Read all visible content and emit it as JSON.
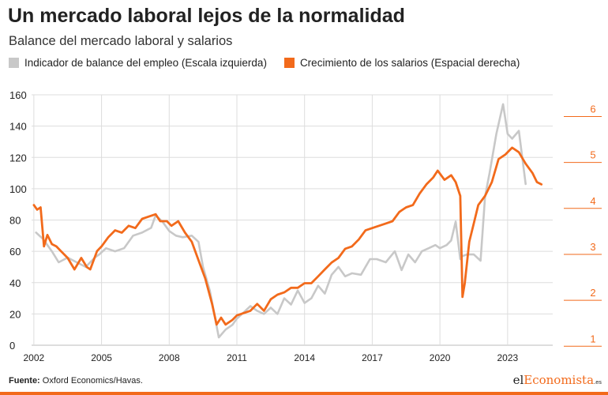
{
  "header": {
    "title": "Un mercado laboral lejos de la normalidad",
    "subtitle": "Balance del mercado laboral y salarios"
  },
  "legend": {
    "gray_label": "Indicador de balance del empleo (Escala izquierda)",
    "orange_label": "Crecimiento de los salarios (Espacial derecha)"
  },
  "footer": {
    "source_prefix": "Fuente:",
    "source_text": " Oxford Economics/Havas.",
    "logo_part1": "el",
    "logo_part2": "Economista",
    "logo_part3": ".es"
  },
  "colors": {
    "gray_series": "#c8c8c8",
    "orange_series": "#f26a1b",
    "grid": "#dddddd",
    "axis_text": "#222222"
  },
  "chart_data": {
    "type": "line",
    "title": "Un mercado laboral lejos de la normalidad",
    "subtitle": "Balance del mercado laboral y salarios",
    "x_ticks": [
      2002,
      2005,
      2008,
      2011,
      2014,
      2017,
      2020,
      2023
    ],
    "xlim": [
      2001.9,
      2025.0
    ],
    "y_left": {
      "lim": [
        0,
        160
      ],
      "ticks": [
        0,
        20,
        40,
        60,
        80,
        100,
        120,
        140,
        160
      ]
    },
    "y_right": {
      "lim": [
        0.85,
        6.3
      ],
      "ticks": [
        1,
        2,
        3,
        4,
        5,
        6
      ]
    },
    "grid": true,
    "legend_position": "top",
    "series": [
      {
        "name": "Indicador de balance del empleo (Escala izquierda)",
        "axis": "left",
        "color": "#c8c8c8",
        "x": [
          2002.1,
          2002.4,
          2002.8,
          2003.1,
          2003.5,
          2003.9,
          2004.3,
          2004.7,
          2004.9,
          2005.2,
          2005.6,
          2006.0,
          2006.4,
          2006.8,
          2007.2,
          2007.4,
          2007.7,
          2008.0,
          2008.3,
          2008.6,
          2009.0,
          2009.3,
          2009.5,
          2009.8,
          2010.0,
          2010.2,
          2010.5,
          2010.8,
          2011.0,
          2011.3,
          2011.6,
          2011.9,
          2012.2,
          2012.5,
          2012.8,
          2013.1,
          2013.4,
          2013.7,
          2014.0,
          2014.3,
          2014.6,
          2014.9,
          2015.2,
          2015.5,
          2015.8,
          2016.1,
          2016.5,
          2016.9,
          2017.2,
          2017.6,
          2018.0,
          2018.3,
          2018.6,
          2018.9,
          2019.2,
          2019.5,
          2019.8,
          2020.0,
          2020.3,
          2020.5,
          2020.7,
          2020.9,
          2021.0,
          2021.2,
          2021.5,
          2021.8,
          2022.0,
          2022.2,
          2022.5,
          2022.8,
          2023.0,
          2023.2,
          2023.5,
          2023.8
        ],
        "values": [
          72,
          68,
          60,
          53,
          56,
          53,
          50,
          56,
          58,
          62,
          60,
          62,
          70,
          72,
          75,
          83,
          79,
          73,
          70,
          69,
          70,
          66,
          50,
          35,
          20,
          5,
          10,
          13,
          17,
          21,
          25,
          22,
          20,
          24,
          20,
          30,
          26,
          35,
          27,
          30,
          38,
          33,
          45,
          50,
          44,
          46,
          45,
          55,
          55,
          53,
          60,
          48,
          58,
          53,
          60,
          62,
          64,
          62,
          64,
          67,
          79,
          55,
          57,
          58,
          58,
          54,
          95,
          110,
          135,
          154,
          135,
          132,
          137,
          103
        ]
      },
      {
        "name": "Crecimiento de los salarios (Espacial derecha)",
        "axis": "right",
        "color": "#f26a1b",
        "x": [
          2002.0,
          2002.15,
          2002.3,
          2002.45,
          2002.6,
          2002.8,
          2003.0,
          2003.2,
          2003.5,
          2003.8,
          2004.1,
          2004.35,
          2004.5,
          2004.8,
          2005.0,
          2005.3,
          2005.6,
          2005.9,
          2006.2,
          2006.5,
          2006.8,
          2007.1,
          2007.4,
          2007.6,
          2007.9,
          2008.1,
          2008.4,
          2008.7,
          2009.0,
          2009.3,
          2009.6,
          2009.9,
          2010.1,
          2010.3,
          2010.5,
          2010.8,
          2011.0,
          2011.3,
          2011.6,
          2011.9,
          2012.2,
          2012.5,
          2012.8,
          2013.1,
          2013.4,
          2013.7,
          2014.0,
          2014.3,
          2014.6,
          2014.9,
          2015.2,
          2015.5,
          2015.8,
          2016.1,
          2016.4,
          2016.7,
          2017.0,
          2017.3,
          2017.6,
          2017.9,
          2018.2,
          2018.5,
          2018.8,
          2019.1,
          2019.4,
          2019.7,
          2019.9,
          2020.2,
          2020.5,
          2020.7,
          2020.9,
          2021.0,
          2021.1,
          2021.3,
          2021.5,
          2021.7,
          2022.0,
          2022.3,
          2022.6,
          2022.9,
          2023.2,
          2023.5,
          2023.8,
          2024.1,
          2024.3,
          2024.5
        ],
        "values": [
          3.9,
          3.8,
          3.85,
          3.0,
          3.25,
          3.05,
          3.0,
          2.9,
          2.75,
          2.5,
          2.75,
          2.55,
          2.5,
          2.9,
          3.0,
          3.2,
          3.35,
          3.3,
          3.45,
          3.4,
          3.6,
          3.65,
          3.7,
          3.55,
          3.55,
          3.45,
          3.55,
          3.3,
          3.1,
          2.7,
          2.3,
          1.75,
          1.3,
          1.45,
          1.3,
          1.4,
          1.5,
          1.55,
          1.6,
          1.75,
          1.6,
          1.85,
          1.95,
          2.0,
          2.1,
          2.1,
          2.2,
          2.2,
          2.35,
          2.5,
          2.65,
          2.75,
          2.95,
          3.0,
          3.15,
          3.35,
          3.4,
          3.45,
          3.5,
          3.55,
          3.75,
          3.85,
          3.9,
          4.15,
          4.35,
          4.5,
          4.65,
          4.45,
          4.55,
          4.4,
          4.1,
          1.9,
          2.2,
          3.1,
          3.5,
          3.9,
          4.1,
          4.4,
          4.9,
          5.0,
          5.15,
          5.05,
          4.8,
          4.6,
          4.4,
          4.35
        ]
      }
    ]
  }
}
